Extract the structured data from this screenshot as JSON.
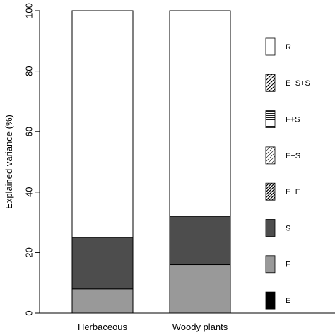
{
  "chart_data": {
    "type": "bar",
    "stacked": true,
    "ylabel": "Explained variance (%)",
    "xlabel": "",
    "ylim": [
      0,
      100
    ],
    "yticks": [
      0,
      20,
      40,
      60,
      80,
      100
    ],
    "categories": [
      "Herbaceous",
      "Woody plants"
    ],
    "series": [
      {
        "name": "E",
        "values": [
          0,
          0
        ],
        "color": "#000000",
        "pattern": "solid"
      },
      {
        "name": "F",
        "values": [
          8,
          16
        ],
        "color": "#999999",
        "pattern": "solid"
      },
      {
        "name": "S",
        "values": [
          17,
          16
        ],
        "color": "#4d4d4d",
        "pattern": "solid"
      },
      {
        "name": "E+F",
        "values": [
          0,
          0
        ],
        "color": "#4d4d4d",
        "pattern": "diag-dense"
      },
      {
        "name": "E+S",
        "values": [
          0,
          0
        ],
        "color": "#ffffff",
        "pattern": "diag-light"
      },
      {
        "name": "F+S",
        "values": [
          0,
          0
        ],
        "color": "#ffffff",
        "pattern": "horizontal"
      },
      {
        "name": "E+S+S",
        "values": [
          0,
          0
        ],
        "color": "#ffffff",
        "pattern": "diag-medium"
      },
      {
        "name": "R",
        "values": [
          75,
          68
        ],
        "color": "#ffffff",
        "pattern": "solid"
      }
    ],
    "legend": {
      "placement": "right",
      "order": [
        "R",
        "E+S+S",
        "F+S",
        "E+S",
        "E+F",
        "S",
        "F",
        "E"
      ]
    },
    "grid": false
  }
}
